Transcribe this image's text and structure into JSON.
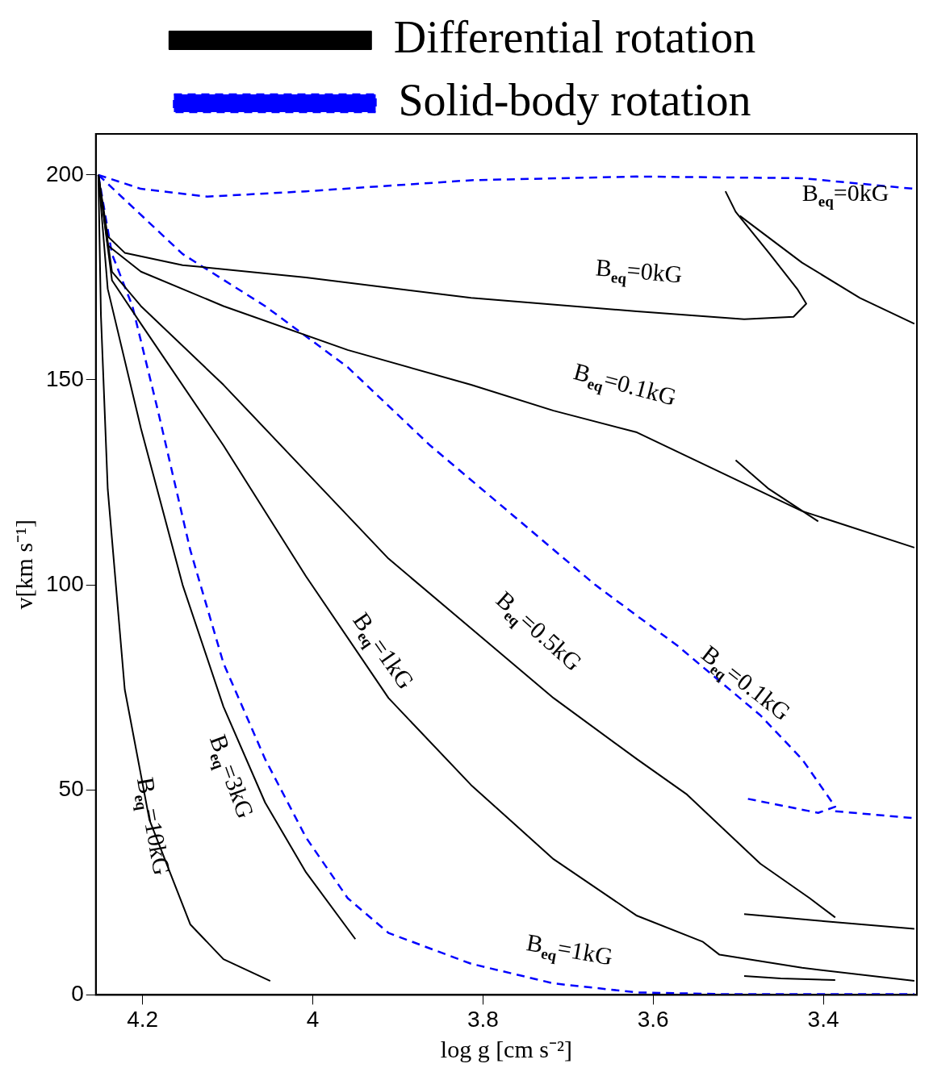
{
  "chart_data": {
    "type": "line",
    "xlabel": "log g [cm s⁻²]",
    "ylabel": "v[km s⁻¹]",
    "xlim": [
      4.255,
      3.29
    ],
    "ylim": [
      0,
      210
    ],
    "xticks": [
      4.2,
      4,
      3.8,
      3.6,
      3.4
    ],
    "yticks": [
      0,
      50,
      100,
      150,
      200
    ],
    "grid": false,
    "legend": "top",
    "marker": "none",
    "series": [
      {
        "name": "Differential rotation",
        "color": "#000000",
        "line_style": "solid",
        "x": [
          4.252,
          4.241,
          4.221,
          4.153,
          4.008,
          3.814,
          3.619,
          3.493,
          3.435,
          3.42,
          3.43,
          3.464,
          3.503,
          3.515
        ],
        "values": [
          200,
          185,
          181,
          178,
          175,
          170,
          166.7,
          164.8,
          165.4,
          168.6,
          172,
          181,
          191,
          196
        ]
      },
      {
        "color": "#000000",
        "line_style": "solid",
        "x": [
          3.498,
          3.425,
          3.357,
          3.293
        ],
        "values": [
          190,
          178.6,
          170,
          163.7
        ]
      },
      {
        "color": "#000000",
        "line_style": "solid",
        "x": [
          4.252,
          4.241,
          4.202,
          4.105,
          3.959,
          3.814,
          3.717,
          3.619,
          3.522,
          3.425,
          3.293
        ],
        "values": [
          200,
          182.8,
          176.4,
          168,
          157.3,
          148.8,
          142.5,
          137.2,
          127.6,
          118,
          109.1
        ]
      },
      {
        "color": "#000000",
        "line_style": "solid",
        "x": [
          3.503,
          3.464,
          3.406
        ],
        "values": [
          130.4,
          123.4,
          115.5
        ]
      },
      {
        "color": "#000000",
        "line_style": "solid",
        "x": [
          4.252,
          4.236,
          4.202,
          4.105,
          4.008,
          3.911,
          3.814,
          3.717,
          3.619,
          3.561,
          3.474,
          3.416,
          3.386
        ],
        "values": [
          200,
          176.4,
          168,
          148.8,
          127.6,
          106.4,
          89.4,
          72.4,
          57.5,
          49,
          32,
          23.6,
          18.9
        ]
      },
      {
        "color": "#000000",
        "line_style": "solid",
        "x": [
          3.493,
          3.4,
          3.293
        ],
        "values": [
          19.7,
          18,
          16.1
        ]
      },
      {
        "color": "#000000",
        "line_style": "solid",
        "x": [
          4.252,
          4.236,
          4.202,
          4.105,
          4.008,
          3.911,
          3.814,
          3.717,
          3.619,
          3.542,
          3.522,
          3.425,
          3.293
        ],
        "values": [
          200,
          174.3,
          163.7,
          134,
          102.1,
          72.4,
          51.2,
          33.1,
          19.3,
          13,
          9.8,
          6.6,
          3.4
        ]
      },
      {
        "color": "#000000",
        "line_style": "solid",
        "x": [
          3.493,
          3.45,
          3.386
        ],
        "values": [
          4.6,
          4,
          3.6
        ]
      },
      {
        "color": "#000000",
        "line_style": "solid",
        "x": [
          4.252,
          4.241,
          4.202,
          4.153,
          4.105,
          4.056,
          4.008,
          3.95
        ],
        "values": [
          200,
          172.2,
          138.2,
          100,
          70.3,
          46.9,
          29.9,
          13.6
        ]
      },
      {
        "color": "#000000",
        "line_style": "solid",
        "x": [
          4.252,
          4.249,
          4.241,
          4.221,
          4.192,
          4.144,
          4.105,
          4.05
        ],
        "values": [
          200,
          165.8,
          123.4,
          74.5,
          42.7,
          17.2,
          8.7,
          3.4
        ]
      },
      {
        "name": "Solid-body rotation",
        "color": "#0000ff",
        "line_style": "dashed",
        "x": [
          4.252,
          4.202,
          4.124,
          4.008,
          3.814,
          3.619,
          3.425,
          3.293
        ],
        "values": [
          200,
          196.6,
          194.7,
          196,
          198.7,
          199.6,
          199.2,
          196.6
        ]
      },
      {
        "color": "#0000ff",
        "line_style": "dashed",
        "x": [
          4.252,
          4.153,
          4.056,
          3.959,
          3.862,
          3.765,
          3.668,
          3.571,
          3.474,
          3.425,
          3.386,
          3.406,
          3.493
        ],
        "values": [
          200,
          180.7,
          168,
          153.1,
          134,
          117,
          100,
          85.1,
          68.2,
          57.5,
          45.9,
          44.4,
          48
        ]
      },
      {
        "color": "#0000ff",
        "line_style": "dashed",
        "x": [
          3.386,
          3.293
        ],
        "values": [
          44.8,
          43.1
        ]
      },
      {
        "color": "#0000ff",
        "line_style": "dashed",
        "x": [
          4.252,
          4.236,
          4.212,
          4.182,
          4.144,
          4.105,
          4.056,
          4.008,
          3.959,
          3.911,
          3.814,
          3.717,
          3.619,
          3.522,
          3.293
        ],
        "values": [
          200,
          180.7,
          168,
          142.5,
          108.5,
          80.9,
          57.5,
          38.4,
          23.6,
          15.1,
          7.6,
          2.8,
          0.6,
          0.2,
          0.2
        ]
      }
    ],
    "annotations": [
      "B$_{eq}$=0kG",
      "B$_{eq}$=0kG",
      "B$_{eq}$=0.1kG",
      "B$_{eq}$=0.5kG",
      "B$_{eq}$=0.1kG",
      "B$_{eq}$=1kG",
      "B$_{eq}$=3kG",
      "B$_{eq}$=10kG",
      "B$_{eq}$=1kG"
    ]
  }
}
